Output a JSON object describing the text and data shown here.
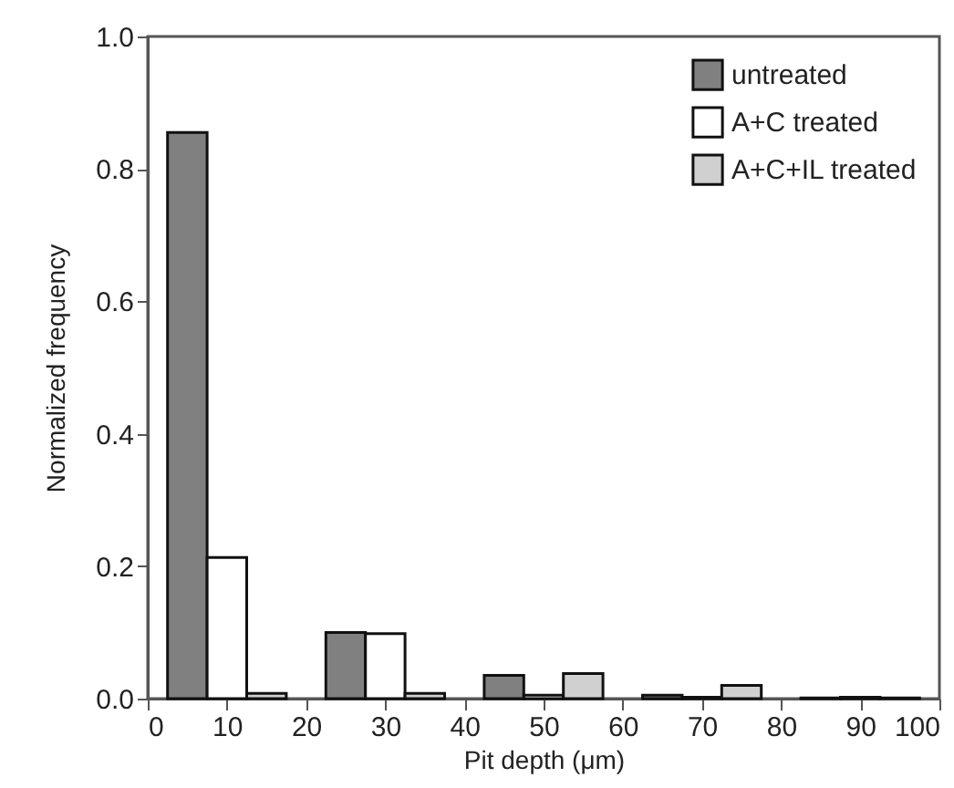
{
  "chart_data": {
    "type": "bar",
    "xlabel": "Pit depth (μm)",
    "ylabel": "Normalized frequency",
    "xlim": [
      0,
      100
    ],
    "ylim": [
      0,
      1
    ],
    "xticks": [
      0,
      10,
      20,
      30,
      40,
      50,
      60,
      70,
      80,
      90,
      100
    ],
    "yticks": [
      {
        "value": 0,
        "label": "0.0"
      },
      0.2,
      0.4,
      0.6,
      0.8,
      {
        "value": 1,
        "label": "1.0"
      }
    ],
    "legend": "top right",
    "series": [
      {
        "name": "untreated",
        "color": "#808080",
        "x": [
          5,
          25,
          45,
          65,
          85
        ],
        "values": [
          0.855,
          0.1,
          0.035,
          0.005,
          0.001
        ]
      },
      {
        "name": "A+C treated",
        "color": "#ffffff",
        "x": [
          10,
          30,
          50,
          70,
          90
        ],
        "values": [
          0.213,
          0.098,
          0.005,
          0.002,
          0.002
        ]
      },
      {
        "name": "A+C+IL treated",
        "color": "#d0d0d0",
        "x": [
          15,
          35,
          55,
          75,
          95
        ],
        "values": [
          0.008,
          0.008,
          0.038,
          0.02,
          0.001
        ]
      }
    ]
  }
}
